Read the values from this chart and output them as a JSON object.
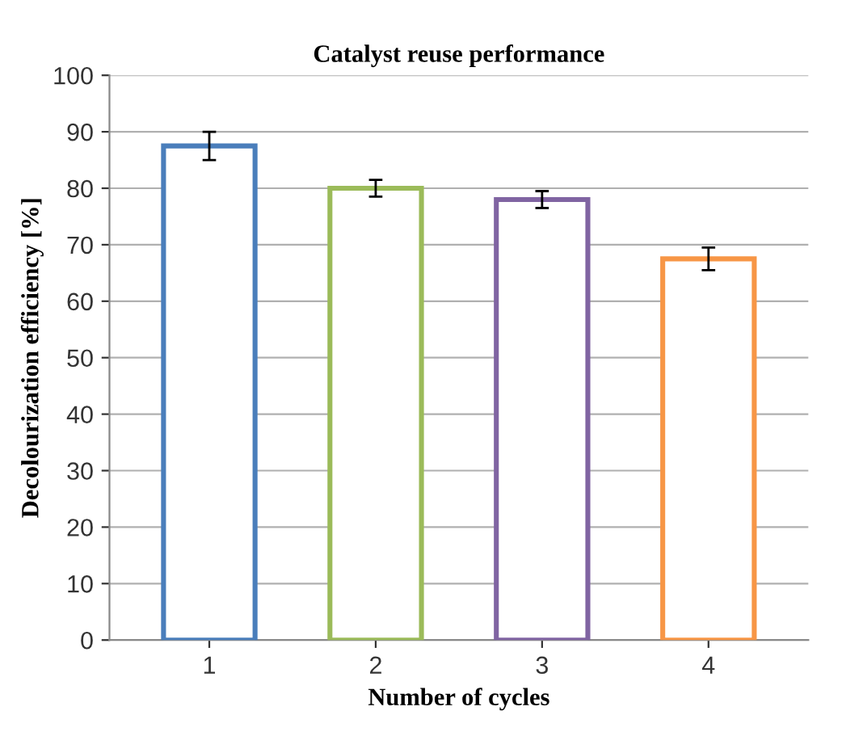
{
  "chart_data": {
    "type": "bar",
    "title": "Catalyst reuse performance",
    "xlabel": "Number of cycles",
    "ylabel": "Decolourization efficiency [%]",
    "categories": [
      "1",
      "2",
      "3",
      "4"
    ],
    "values": [
      87.5,
      80,
      78,
      67.5
    ],
    "errors": [
      2.5,
      1.5,
      1.5,
      2
    ],
    "colors": [
      "#4a7ebb",
      "#9bbb59",
      "#8064a2",
      "#f79646"
    ],
    "ylim": [
      0,
      100
    ],
    "yticks": [
      0,
      10,
      20,
      30,
      40,
      50,
      60,
      70,
      80,
      90,
      100
    ],
    "grid": "y",
    "legend": false
  }
}
